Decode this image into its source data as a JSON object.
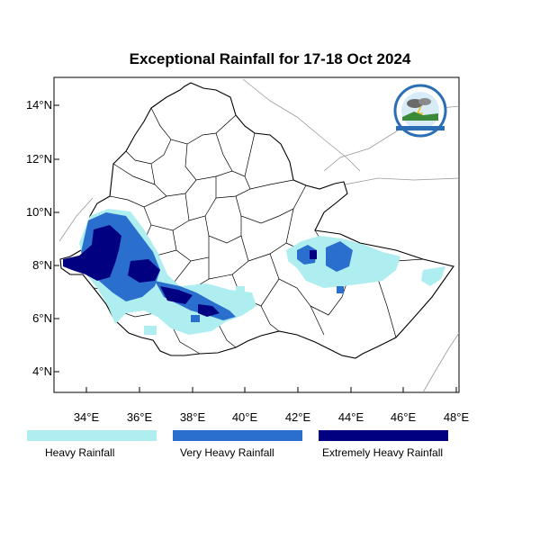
{
  "title": "Exceptional Rainfall for 17-18 Oct 2024",
  "axes": {
    "lon_ticks": [
      "34°E",
      "36°E",
      "38°E",
      "40°E",
      "42°E",
      "44°E",
      "46°E",
      "48°E"
    ],
    "lat_ticks": [
      "14°N",
      "12°N",
      "10°N",
      "8°N",
      "6°N",
      "4°N"
    ]
  },
  "legend": [
    {
      "label": "Heavy Rainfall",
      "color": "#aeeef0"
    },
    {
      "label": "Very Heavy Rainfall",
      "color": "#2b6fce"
    },
    {
      "label": "Extremely Heavy Rainfall",
      "color": "#000080"
    }
  ],
  "colors": {
    "heavy": "#aeeef0",
    "very_heavy": "#2b6fce",
    "extreme": "#000080",
    "border": "#000000",
    "neighbor_border": "#9a9a9a"
  },
  "logo": {
    "icon": "meteorology-institute-logo-icon"
  }
}
